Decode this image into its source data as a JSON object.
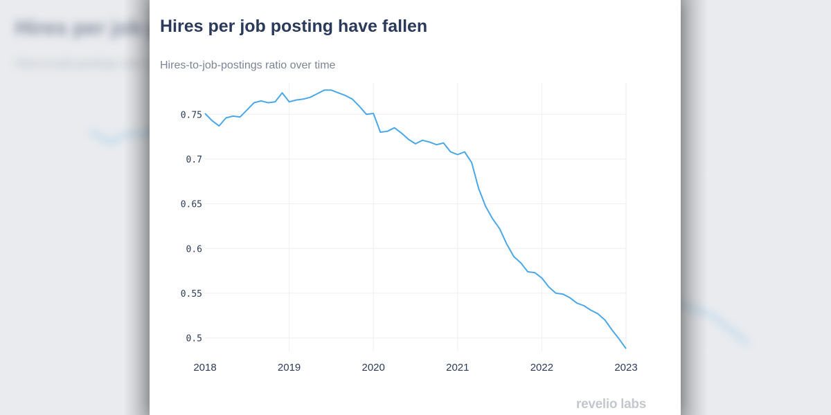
{
  "backdrop": {
    "title": "Hires per job posting have fallen",
    "subtitle": "Hires-to-job-postings ratio over time"
  },
  "chart_data": {
    "type": "line",
    "title": "Hires per job posting have fallen",
    "subtitle": "Hires-to-job-postings ratio over time",
    "xlabel": "",
    "ylabel": "",
    "xlim": [
      "2018-01",
      "2023-01"
    ],
    "ylim": [
      0.485,
      0.785
    ],
    "y_ticks": [
      "0.5",
      "0.55",
      "0.6",
      "0.65",
      "0.7",
      "0.75"
    ],
    "x_ticks": [
      "2018",
      "2019",
      "2020",
      "2021",
      "2022",
      "2023"
    ],
    "grid": true,
    "color": "#4aa8e8",
    "series": [
      {
        "x": [
          "2018-01",
          "2018-02",
          "2018-03",
          "2018-04",
          "2018-05",
          "2018-06",
          "2018-07",
          "2018-08",
          "2018-09",
          "2018-10",
          "2018-11",
          "2018-12",
          "2019-01",
          "2019-02",
          "2019-03",
          "2019-04",
          "2019-05",
          "2019-06",
          "2019-07",
          "2019-08",
          "2019-09",
          "2019-10",
          "2019-11",
          "2019-12",
          "2020-01",
          "2020-02",
          "2020-03",
          "2020-04",
          "2020-05",
          "2020-06",
          "2020-07",
          "2020-08",
          "2020-09",
          "2020-10",
          "2020-11",
          "2020-12",
          "2021-01",
          "2021-02",
          "2021-03",
          "2021-04",
          "2021-05",
          "2021-06",
          "2021-07",
          "2021-08",
          "2021-09",
          "2021-10",
          "2021-11",
          "2021-12",
          "2022-01",
          "2022-02",
          "2022-03",
          "2022-04",
          "2022-05",
          "2022-06",
          "2022-07",
          "2022-08",
          "2022-09",
          "2022-10",
          "2022-11",
          "2022-12",
          "2023-01"
        ],
        "values": [
          0.751,
          0.743,
          0.737,
          0.746,
          0.748,
          0.747,
          0.755,
          0.763,
          0.765,
          0.763,
          0.764,
          0.774,
          0.764,
          0.766,
          0.767,
          0.769,
          0.773,
          0.777,
          0.777,
          0.774,
          0.771,
          0.767,
          0.759,
          0.75,
          0.751,
          0.73,
          0.731,
          0.735,
          0.729,
          0.722,
          0.717,
          0.721,
          0.719,
          0.716,
          0.718,
          0.708,
          0.705,
          0.708,
          0.696,
          0.667,
          0.647,
          0.633,
          0.622,
          0.605,
          0.591,
          0.584,
          0.574,
          0.573,
          0.567,
          0.557,
          0.55,
          0.549,
          0.545,
          0.539,
          0.536,
          0.531,
          0.527,
          0.52,
          0.509,
          0.499,
          0.488
        ]
      }
    ]
  },
  "logo": {
    "text": "revelio labs"
  }
}
